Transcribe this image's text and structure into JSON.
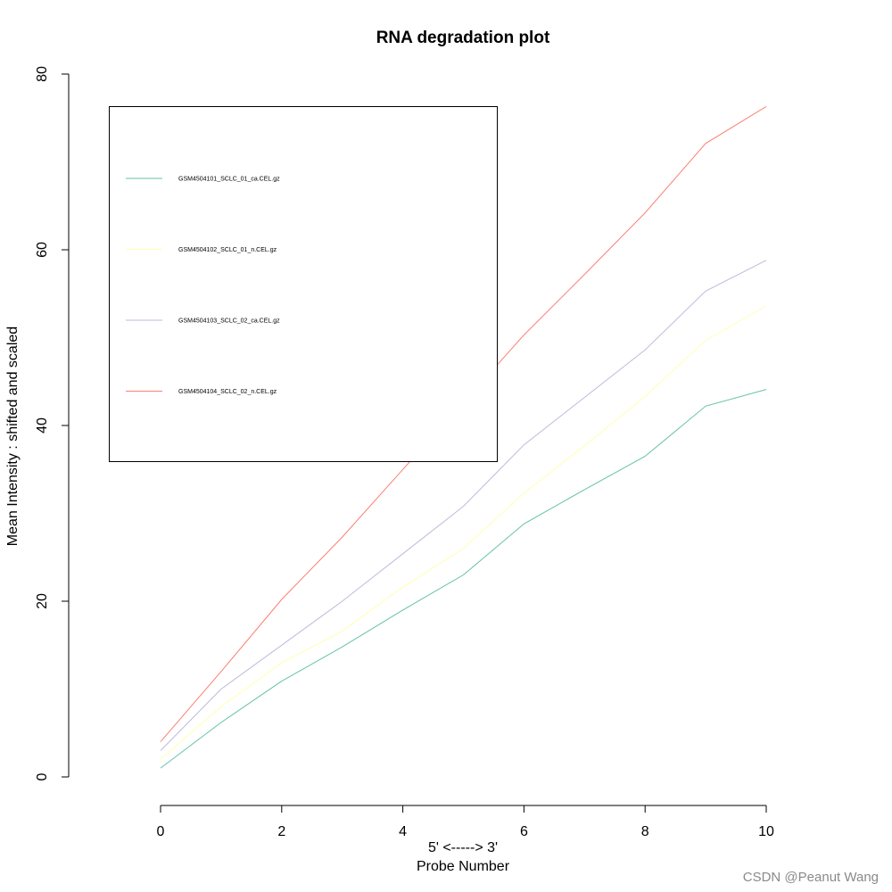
{
  "chart_data": {
    "type": "line",
    "title": "RNA degradation plot",
    "xlabel_line1": "5' <-----> 3'",
    "xlabel_line2": "Probe Number",
    "ylabel": "Mean Intensity : shifted and scaled",
    "x": [
      0,
      1,
      2,
      3,
      4,
      5,
      6,
      7,
      8,
      9,
      10
    ],
    "xlim": [
      0,
      10
    ],
    "ylim": [
      0,
      80
    ],
    "x_ticks": [
      0,
      2,
      4,
      6,
      8,
      10
    ],
    "y_ticks": [
      0,
      20,
      40,
      60,
      80
    ],
    "grid": false,
    "legend_position": "top-left",
    "series": [
      {
        "name": "GSM4504101_SCLC_01_ca.CEL.gz",
        "color": "#66C2A5",
        "values": [
          1.0,
          6.2,
          10.9,
          14.8,
          19.0,
          23.0,
          28.8,
          32.7,
          36.5,
          42.2,
          44.1
        ]
      },
      {
        "name": "GSM4504102_SCLC_01_n.CEL.gz",
        "color": "#FFFFB3",
        "values": [
          2.0,
          8.0,
          13.0,
          16.6,
          21.6,
          26.0,
          32.3,
          37.7,
          43.3,
          49.7,
          53.6
        ]
      },
      {
        "name": "GSM4504103_SCLC_02_ca.CEL.gz",
        "color": "#BEBADA",
        "values": [
          3.0,
          10.0,
          15.0,
          20.0,
          25.4,
          30.8,
          37.8,
          43.2,
          48.6,
          55.3,
          58.8
        ]
      },
      {
        "name": "GSM4504104_SCLC_02_n.CEL.gz",
        "color": "#FB8072",
        "values": [
          4.0,
          12.0,
          20.2,
          27.3,
          35.0,
          42.6,
          50.3,
          57.2,
          64.2,
          72.1,
          76.3
        ]
      }
    ]
  },
  "watermark": "CSDN @Peanut Wang"
}
